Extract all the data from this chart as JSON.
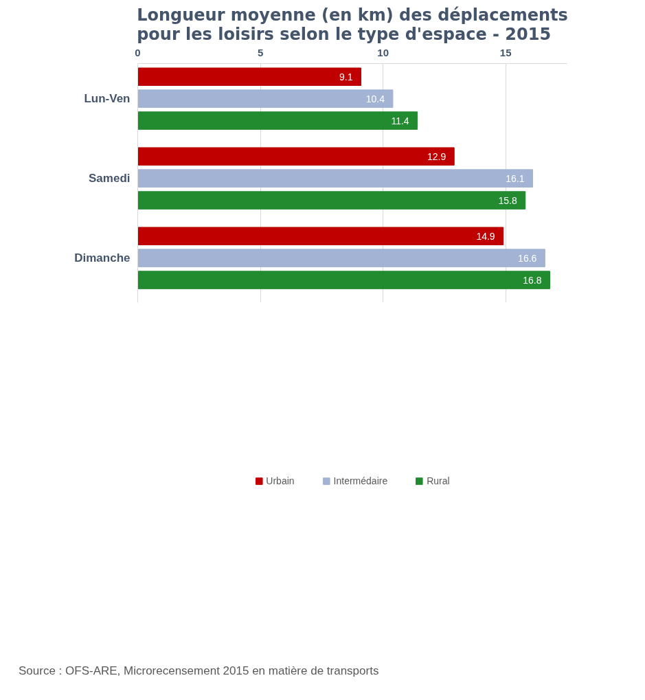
{
  "chart_data": {
    "type": "bar",
    "orientation": "horizontal",
    "title": "Longueur moyenne (en km) des déplacements\npour les loisirs selon le type d'espace - 2015",
    "categories": [
      "Lun-Ven",
      "Samedi",
      "Dimanche"
    ],
    "series": [
      {
        "name": "Urbain",
        "color": "#c00000",
        "values": [
          9.1,
          12.9,
          14.9
        ]
      },
      {
        "name": "Intermédaire",
        "color": "#a2b3d3",
        "values": [
          10.4,
          16.1,
          16.6
        ]
      },
      {
        "name": "Rural",
        "color": "#228b30",
        "values": [
          11.4,
          15.8,
          16.8
        ]
      }
    ],
    "xlim": [
      0,
      17.5
    ],
    "xticks": [
      0,
      5,
      10,
      15
    ],
    "grid": "x",
    "legend": "bottom",
    "data_labels": true,
    "annotations": [
      "Source : OFS-ARE, Microrecensement 2015 en matière de transports"
    ]
  }
}
